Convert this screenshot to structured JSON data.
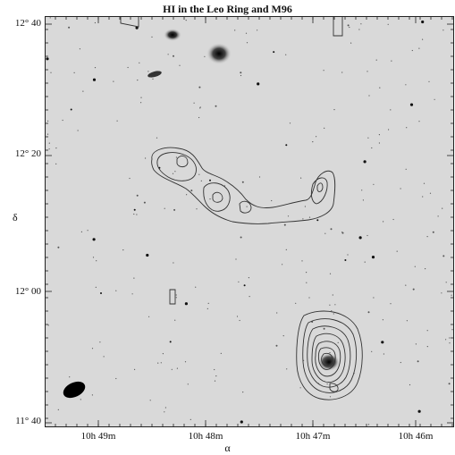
{
  "figure": {
    "title": "HI in the Leo Ring and M96",
    "xaxis_label": "α",
    "yaxis_label": "δ",
    "y_ticks": [
      "12° 40",
      "12° 20",
      "12° 00",
      "11° 40"
    ],
    "x_ticks": [
      "10h 49m",
      "10h 48m",
      "10h 47m",
      "10h 46m"
    ]
  }
}
